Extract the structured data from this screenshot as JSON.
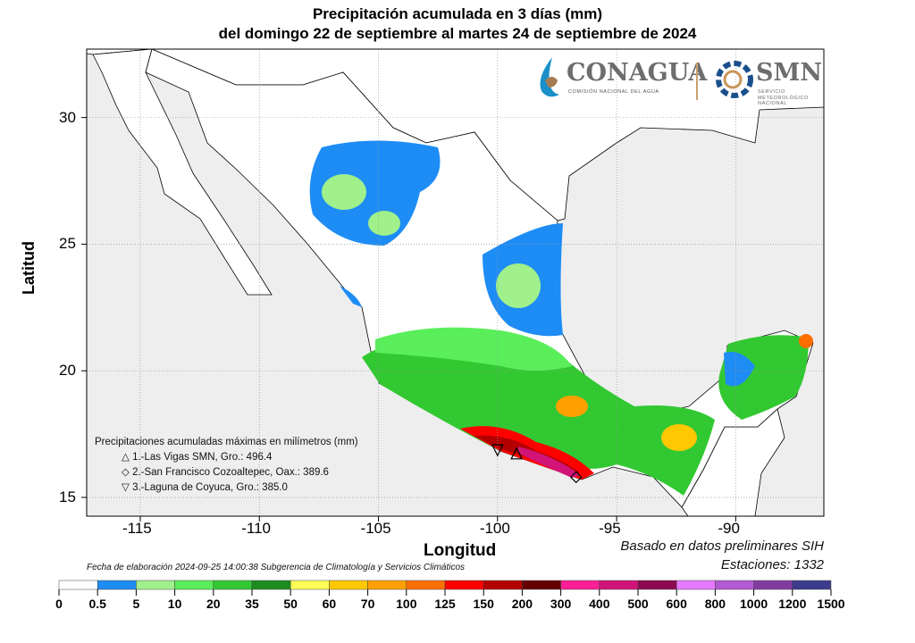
{
  "title": {
    "line1": "Precipitación acumulada en 3 días (mm)",
    "line2": "del domingo 22 de septiembre al martes 24 de septiembre de 2024"
  },
  "axes": {
    "xlabel": "Longitud",
    "ylabel": "Latitud",
    "lon_ticks": [
      -115,
      -110,
      -105,
      -100,
      -95,
      -90
    ],
    "lat_ticks": [
      30,
      25,
      20,
      15
    ],
    "lon_range": [
      -117.25,
      -86.3
    ],
    "lat_range": [
      14.26,
      32.7
    ]
  },
  "logos": {
    "conagua": "CONAGUA",
    "conagua_sub": "COMISIÓN NACIONAL DEL AGUA",
    "smn": "SMN",
    "smn_sub": "SERVICIO METEOROLÓGICO NACIONAL"
  },
  "legend": {
    "title": "Precipitaciones acumuladas máximas en milímetros (mm)",
    "items": [
      {
        "symbol": "△",
        "text": "1.-Las Vigas SMN, Gro.: 496.4",
        "lon": -99.2,
        "lat": 16.7
      },
      {
        "symbol": "◇",
        "text": "2.-San Francisco Cozoaltepec, Oax.: 389.6",
        "lon": -96.7,
        "lat": 15.8
      },
      {
        "symbol": "▽",
        "text": "3.-Laguna de Coyuca, Gro.: 385.0",
        "lon": -100.0,
        "lat": 16.9
      }
    ]
  },
  "notes": {
    "source": "Basado en datos preliminares SIH",
    "stations": "Estaciones: 1332",
    "footer": "Fecha de elaboración 2024-09-25 14:00:38 Subgerencia de Climatología y Servicios Climáticos"
  },
  "colorbar": {
    "labels": [
      "0",
      "0.5",
      "5",
      "10",
      "20",
      "35",
      "50",
      "60",
      "70",
      "100",
      "125",
      "150",
      "200",
      "300",
      "400",
      "500",
      "600",
      "800",
      "1000",
      "1200",
      "1500"
    ],
    "colors": [
      "#ffffff",
      "#1e8cf5",
      "#a0f08c",
      "#5aee5a",
      "#32c832",
      "#1e8c1e",
      "#ffff5a",
      "#ffc800",
      "#ffa000",
      "#ff6e00",
      "#ff0000",
      "#b40000",
      "#640000",
      "#ff1e96",
      "#d21478",
      "#8c0a50",
      "#e678ff",
      "#b45ad2",
      "#823ca0",
      "#3c3c8c"
    ]
  },
  "colors": {
    "sea": "#eeeeee",
    "land_other": "#ffffff",
    "mexico": "#ffffff"
  }
}
